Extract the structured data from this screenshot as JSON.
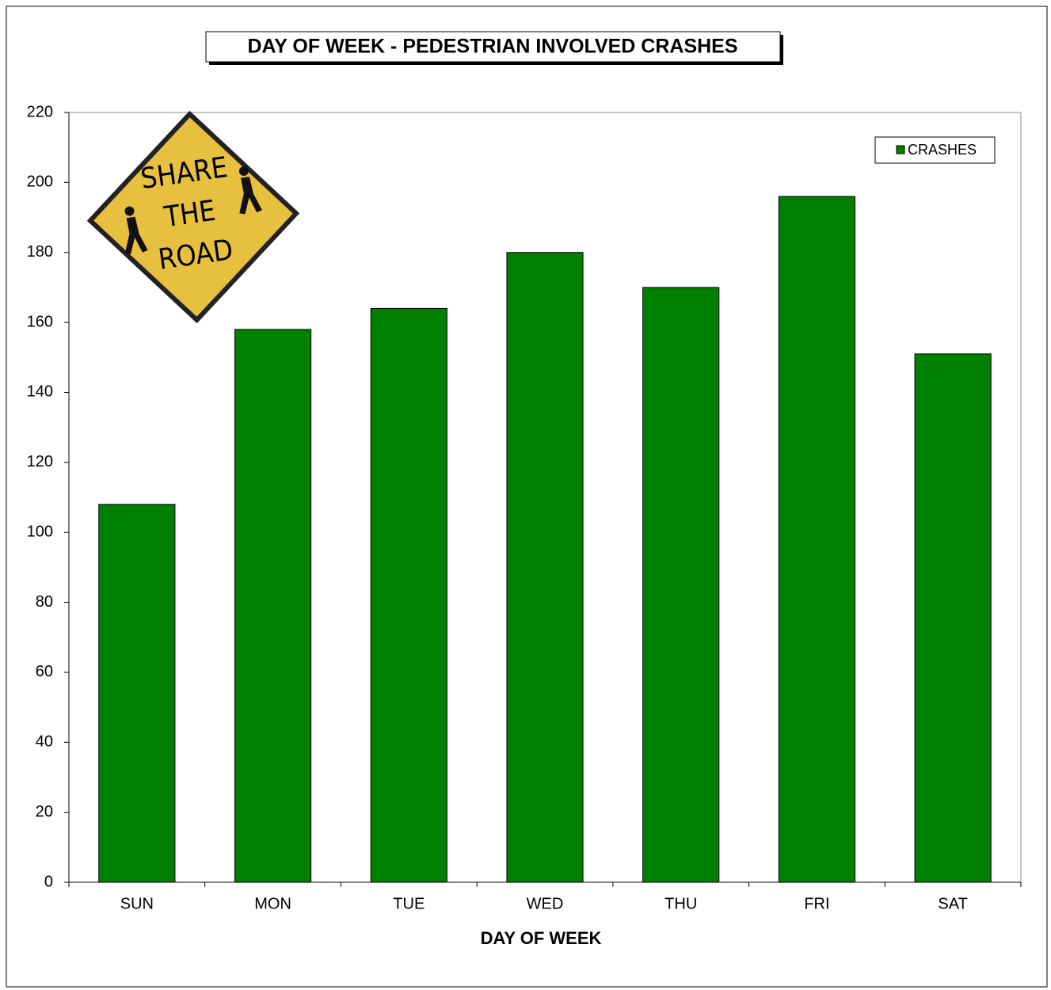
{
  "chart_data": {
    "type": "bar",
    "title": "DAY OF WEEK - PEDESTRIAN INVOLVED CRASHES",
    "x_label": "DAY OF WEEK",
    "categories": [
      "SUN",
      "MON",
      "TUE",
      "WED",
      "THU",
      "FRI",
      "SAT"
    ],
    "series": [
      {
        "name": "CRASHES",
        "color": "#008000",
        "values": [
          108,
          158,
          164,
          180,
          170,
          196,
          151
        ]
      }
    ],
    "ylim": [
      0,
      220
    ],
    "yticks": [
      0,
      20,
      40,
      60,
      80,
      100,
      120,
      140,
      160,
      180,
      200,
      220
    ],
    "grid": false,
    "legend": "upper right",
    "annotations": [
      "SHARE",
      "THE",
      "ROAD"
    ]
  }
}
